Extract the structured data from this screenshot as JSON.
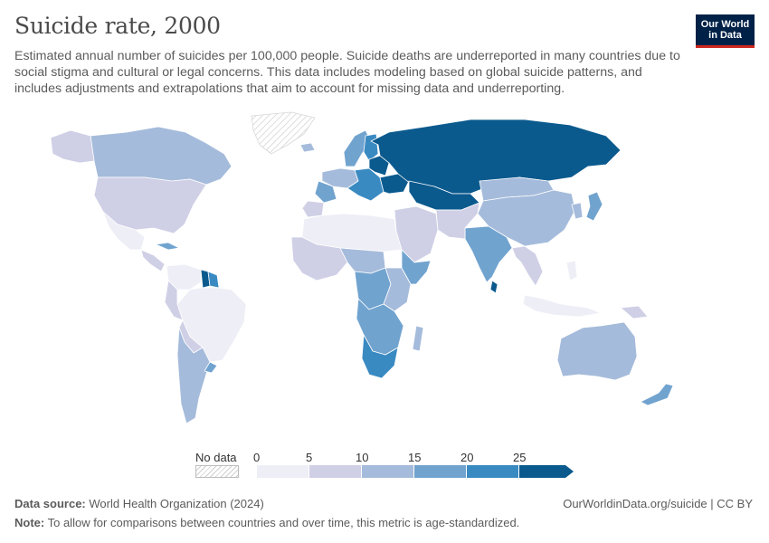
{
  "header": {
    "title": "Suicide rate, 2000",
    "subtitle": "Estimated annual number of suicides per 100,000 people. Suicide deaths are underreported in many countries due to social stigma and cultural or legal concerns. This data includes modeling based on global suicide patterns, and includes adjustments and extrapolations that aim to account for missing data and underreporting.",
    "logo_line1": "Our World",
    "logo_line2": "in Data"
  },
  "colors": {
    "bin1": "#eeeef6",
    "bin2": "#cfd0e6",
    "bin3": "#a5bbdb",
    "bin4": "#71a3cf",
    "bin5": "#3a8ac2",
    "bin6": "#0b5a8e",
    "nodata": "#e0e0e0"
  },
  "legend": {
    "nodata_label": "No data",
    "ticks": [
      "0",
      "5",
      "10",
      "15",
      "20",
      "25"
    ]
  },
  "map": {
    "regions": [
      {
        "name": "Greenland",
        "bin": 0
      },
      {
        "name": "Canada",
        "bin": 3
      },
      {
        "name": "Alaska",
        "bin": 2
      },
      {
        "name": "United States",
        "bin": 2
      },
      {
        "name": "Mexico",
        "bin": 1
      },
      {
        "name": "Central America",
        "bin": 2
      },
      {
        "name": "Cuba",
        "bin": 4
      },
      {
        "name": "Venezuela and Colombia",
        "bin": 1
      },
      {
        "name": "Guyana",
        "bin": 6
      },
      {
        "name": "Suriname",
        "bin": 5
      },
      {
        "name": "Brazil",
        "bin": 1
      },
      {
        "name": "Peru",
        "bin": 2
      },
      {
        "name": "Bolivia",
        "bin": 2
      },
      {
        "name": "Chile and Argentina",
        "bin": 3
      },
      {
        "name": "Uruguay",
        "bin": 4
      },
      {
        "name": "Iceland",
        "bin": 3
      },
      {
        "name": "Scandinavia",
        "bin": 4
      },
      {
        "name": "Finland",
        "bin": 5
      },
      {
        "name": "Western Europe",
        "bin": 3
      },
      {
        "name": "France",
        "bin": 4
      },
      {
        "name": "Spain",
        "bin": 2
      },
      {
        "name": "Eastern Europe",
        "bin": 5
      },
      {
        "name": "Baltics and Belarus",
        "bin": 6
      },
      {
        "name": "Ukraine",
        "bin": 6
      },
      {
        "name": "Russia",
        "bin": 6
      },
      {
        "name": "Kazakhstan",
        "bin": 6
      },
      {
        "name": "Mongolia and western China",
        "bin": 3
      },
      {
        "name": "China",
        "bin": 3
      },
      {
        "name": "Korea",
        "bin": 3
      },
      {
        "name": "Japan",
        "bin": 4
      },
      {
        "name": "India",
        "bin": 4
      },
      {
        "name": "Sri Lanka",
        "bin": 6
      },
      {
        "name": "Middle East",
        "bin": 2
      },
      {
        "name": "Iran and Central Asia",
        "bin": 2
      },
      {
        "name": "Southeast Asia",
        "bin": 2
      },
      {
        "name": "Indonesia",
        "bin": 1
      },
      {
        "name": "Philippines",
        "bin": 1
      },
      {
        "name": "North Africa",
        "bin": 1
      },
      {
        "name": "West Africa",
        "bin": 2
      },
      {
        "name": "Central Africa",
        "bin": 3
      },
      {
        "name": "DR Congo",
        "bin": 4
      },
      {
        "name": "East Africa",
        "bin": 3
      },
      {
        "name": "Horn of Africa",
        "bin": 4
      },
      {
        "name": "Southern Africa",
        "bin": 4
      },
      {
        "name": "South Africa",
        "bin": 5
      },
      {
        "name": "Madagascar",
        "bin": 3
      },
      {
        "name": "Australia",
        "bin": 3
      },
      {
        "name": "New Zealand",
        "bin": 4
      },
      {
        "name": "Papua New Guinea",
        "bin": 2
      }
    ]
  },
  "footer": {
    "source_label": "Data source:",
    "source_text": "World Health Organization (2024)",
    "url": "OurWorldinData.org/suicide | CC BY",
    "note_label": "Note:",
    "note_text": "To allow for comparisons between countries and over time, this metric is age-standardized."
  }
}
